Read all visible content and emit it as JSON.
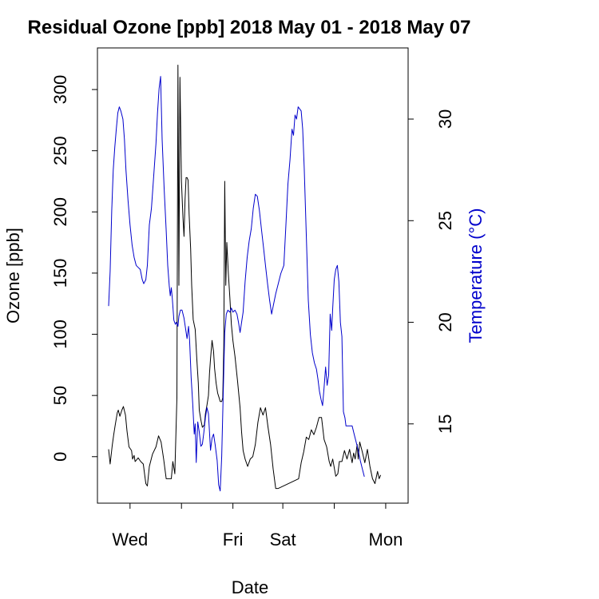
{
  "chart_data": {
    "type": "line",
    "title": "Residual Ozone [ppb] 2018 May 01 - 2018 May 07",
    "xlabel": "Date",
    "ylabel": "Ozone [ppb]",
    "y2label": "Temperature (°C)",
    "x_axis": {
      "unit": "days since start of record",
      "range": [
        0,
        6.1
      ],
      "ticks": [
        {
          "x": 0.64,
          "label": "Wed"
        },
        {
          "x": 1.65,
          "label": ""
        },
        {
          "x": 2.66,
          "label": "Fri"
        },
        {
          "x": 3.64,
          "label": "Sat"
        },
        {
          "x": 4.65,
          "label": ""
        },
        {
          "x": 5.66,
          "label": "Mon"
        }
      ]
    },
    "y_axis": {
      "range": [
        -38,
        334
      ],
      "ticks": [
        {
          "v": 0,
          "label": "0"
        },
        {
          "v": 50,
          "label": "50"
        },
        {
          "v": 100,
          "label": "100"
        },
        {
          "v": 150,
          "label": "150"
        },
        {
          "v": 200,
          "label": "200"
        },
        {
          "v": 250,
          "label": "250"
        },
        {
          "v": 300,
          "label": "300"
        }
      ]
    },
    "y2_axis": {
      "range": [
        11.1,
        33.5
      ],
      "ticks": [
        {
          "v": 15,
          "label": "15"
        },
        {
          "v": 20,
          "label": "20"
        },
        {
          "v": 25,
          "label": "25"
        },
        {
          "v": 30,
          "label": "30"
        }
      ]
    },
    "grid": false,
    "legend": "none",
    "series": [
      {
        "name": "Ozone",
        "axis": "left",
        "color": "#000000",
        "points": [
          [
            0.22,
            6
          ],
          [
            0.25,
            -6
          ],
          [
            0.29,
            9
          ],
          [
            0.32,
            18
          ],
          [
            0.35,
            26
          ],
          [
            0.39,
            36
          ],
          [
            0.41,
            38
          ],
          [
            0.44,
            33
          ],
          [
            0.48,
            38
          ],
          [
            0.51,
            41
          ],
          [
            0.55,
            34
          ],
          [
            0.58,
            21
          ],
          [
            0.62,
            8
          ],
          [
            0.67,
            5
          ],
          [
            0.69,
            -2
          ],
          [
            0.72,
            1
          ],
          [
            0.74,
            -4
          ],
          [
            0.8,
            -1
          ],
          [
            0.85,
            -4
          ],
          [
            0.9,
            -6
          ],
          [
            0.95,
            -22
          ],
          [
            0.98,
            -24
          ],
          [
            1.02,
            -8
          ],
          [
            1.08,
            2
          ],
          [
            1.15,
            8
          ],
          [
            1.2,
            17
          ],
          [
            1.25,
            12
          ],
          [
            1.3,
            -2
          ],
          [
            1.35,
            -18
          ],
          [
            1.4,
            -18
          ],
          [
            1.45,
            -18
          ],
          [
            1.48,
            -4
          ],
          [
            1.52,
            -14
          ],
          [
            1.56,
            48
          ],
          [
            1.58,
            320
          ],
          [
            1.6,
            140
          ],
          [
            1.62,
            310
          ],
          [
            1.65,
            225
          ],
          [
            1.68,
            195
          ],
          [
            1.7,
            180
          ],
          [
            1.72,
            210
          ],
          [
            1.74,
            228
          ],
          [
            1.76,
            228
          ],
          [
            1.78,
            226
          ],
          [
            1.8,
            198
          ],
          [
            1.83,
            170
          ],
          [
            1.85,
            140
          ],
          [
            1.88,
            112
          ],
          [
            1.92,
            104
          ],
          [
            1.95,
            80
          ],
          [
            1.98,
            60
          ],
          [
            2.0,
            38
          ],
          [
            2.03,
            30
          ],
          [
            2.06,
            24
          ],
          [
            2.1,
            26
          ],
          [
            2.12,
            35
          ],
          [
            2.15,
            42
          ],
          [
            2.18,
            50
          ],
          [
            2.2,
            68
          ],
          [
            2.22,
            80
          ],
          [
            2.25,
            95
          ],
          [
            2.28,
            86
          ],
          [
            2.3,
            72
          ],
          [
            2.33,
            60
          ],
          [
            2.36,
            52
          ],
          [
            2.39,
            48
          ],
          [
            2.41,
            45
          ],
          [
            2.44,
            45
          ],
          [
            2.46,
            48
          ],
          [
            2.48,
            90
          ],
          [
            2.5,
            225
          ],
          [
            2.52,
            140
          ],
          [
            2.54,
            175
          ],
          [
            2.57,
            150
          ],
          [
            2.6,
            130
          ],
          [
            2.63,
            108
          ],
          [
            2.66,
            95
          ],
          [
            2.7,
            82
          ],
          [
            2.75,
            62
          ],
          [
            2.8,
            40
          ],
          [
            2.83,
            20
          ],
          [
            2.86,
            5
          ],
          [
            2.9,
            -2
          ],
          [
            2.95,
            -8
          ],
          [
            3.0,
            -2
          ],
          [
            3.05,
            0
          ],
          [
            3.1,
            10
          ],
          [
            3.15,
            28
          ],
          [
            3.2,
            40
          ],
          [
            3.25,
            34
          ],
          [
            3.3,
            40
          ],
          [
            3.35,
            24
          ],
          [
            3.4,
            10
          ],
          [
            3.45,
            -10
          ],
          [
            3.5,
            -26
          ],
          [
            3.55,
            -26
          ],
          [
            3.95,
            -18
          ],
          [
            4.0,
            -5
          ],
          [
            4.05,
            4
          ],
          [
            4.1,
            16
          ],
          [
            4.15,
            14
          ],
          [
            4.2,
            22
          ],
          [
            4.25,
            18
          ],
          [
            4.3,
            24
          ],
          [
            4.35,
            32
          ],
          [
            4.4,
            32
          ],
          [
            4.45,
            14
          ],
          [
            4.5,
            8
          ],
          [
            4.55,
            -4
          ],
          [
            4.58,
            -8
          ],
          [
            4.62,
            -2
          ],
          [
            4.68,
            -16
          ],
          [
            4.72,
            -14
          ],
          [
            4.75,
            -4
          ],
          [
            4.8,
            -4
          ],
          [
            4.85,
            5
          ],
          [
            4.9,
            -2
          ],
          [
            4.95,
            6
          ],
          [
            5.0,
            -5
          ],
          [
            5.03,
            3
          ],
          [
            5.06,
            -2
          ],
          [
            5.1,
            10
          ],
          [
            5.12,
            -2
          ],
          [
            5.15,
            12
          ],
          [
            5.2,
            4
          ],
          [
            5.25,
            -5
          ],
          [
            5.3,
            6
          ],
          [
            5.35,
            -8
          ],
          [
            5.4,
            -18
          ],
          [
            5.45,
            -22
          ],
          [
            5.5,
            -12
          ],
          [
            5.53,
            -18
          ],
          [
            5.56,
            -15
          ]
        ]
      },
      {
        "name": "Temperature",
        "axis": "right",
        "color": "#0000cc",
        "points": [
          [
            0.22,
            20.8
          ],
          [
            0.25,
            22.5
          ],
          [
            0.28,
            25.5
          ],
          [
            0.31,
            27.5
          ],
          [
            0.34,
            28.6
          ],
          [
            0.37,
            29.5
          ],
          [
            0.4,
            30.3
          ],
          [
            0.43,
            30.6
          ],
          [
            0.46,
            30.4
          ],
          [
            0.5,
            30.0
          ],
          [
            0.53,
            29.0
          ],
          [
            0.56,
            27.5
          ],
          [
            0.6,
            26.0
          ],
          [
            0.64,
            24.8
          ],
          [
            0.68,
            23.8
          ],
          [
            0.72,
            23.2
          ],
          [
            0.76,
            22.8
          ],
          [
            0.8,
            22.7
          ],
          [
            0.84,
            22.6
          ],
          [
            0.88,
            22.1
          ],
          [
            0.91,
            21.9
          ],
          [
            0.95,
            22.1
          ],
          [
            0.98,
            22.8
          ],
          [
            1.02,
            24.8
          ],
          [
            1.06,
            25.6
          ],
          [
            1.1,
            27.0
          ],
          [
            1.15,
            28.8
          ],
          [
            1.18,
            30.3
          ],
          [
            1.21,
            31.5
          ],
          [
            1.24,
            32.1
          ],
          [
            1.27,
            29.0
          ],
          [
            1.31,
            26.6
          ],
          [
            1.35,
            24.5
          ],
          [
            1.38,
            22.8
          ],
          [
            1.41,
            21.8
          ],
          [
            1.43,
            21.3
          ],
          [
            1.45,
            21.7
          ],
          [
            1.47,
            21.2
          ],
          [
            1.5,
            20.1
          ],
          [
            1.53,
            19.9
          ],
          [
            1.55,
            20.0
          ],
          [
            1.58,
            19.8
          ],
          [
            1.6,
            20.3
          ],
          [
            1.63,
            20.6
          ],
          [
            1.66,
            20.6
          ],
          [
            1.7,
            20.2
          ],
          [
            1.73,
            19.7
          ],
          [
            1.76,
            19.2
          ],
          [
            1.79,
            19.8
          ],
          [
            1.81,
            19.1
          ],
          [
            1.84,
            17.3
          ],
          [
            1.87,
            16.0
          ],
          [
            1.9,
            14.5
          ],
          [
            1.92,
            15.0
          ],
          [
            1.94,
            13.1
          ],
          [
            1.97,
            15.1
          ],
          [
            2.0,
            14.6
          ],
          [
            2.03,
            13.9
          ],
          [
            2.06,
            14.0
          ],
          [
            2.09,
            14.6
          ],
          [
            2.12,
            15.3
          ],
          [
            2.15,
            15.8
          ],
          [
            2.18,
            15.5
          ],
          [
            2.22,
            13.7
          ],
          [
            2.25,
            14.3
          ],
          [
            2.28,
            14.5
          ],
          [
            2.31,
            14.0
          ],
          [
            2.35,
            13.2
          ],
          [
            2.38,
            12.0
          ],
          [
            2.41,
            11.7
          ],
          [
            2.44,
            13.4
          ],
          [
            2.47,
            16.5
          ],
          [
            2.5,
            19.5
          ],
          [
            2.53,
            20.4
          ],
          [
            2.56,
            20.6
          ],
          [
            2.6,
            20.5
          ],
          [
            2.63,
            20.7
          ],
          [
            2.66,
            20.5
          ],
          [
            2.7,
            20.6
          ],
          [
            2.74,
            20.4
          ],
          [
            2.77,
            20.0
          ],
          [
            2.8,
            19.5
          ],
          [
            2.83,
            20.0
          ],
          [
            2.86,
            20.5
          ],
          [
            2.9,
            22.0
          ],
          [
            2.94,
            23.2
          ],
          [
            2.98,
            24.0
          ],
          [
            3.02,
            24.6
          ],
          [
            3.06,
            25.6
          ],
          [
            3.1,
            26.3
          ],
          [
            3.14,
            26.2
          ],
          [
            3.18,
            25.5
          ],
          [
            3.22,
            24.6
          ],
          [
            3.26,
            23.7
          ],
          [
            3.3,
            22.8
          ],
          [
            3.34,
            21.9
          ],
          [
            3.38,
            21.1
          ],
          [
            3.42,
            20.4
          ],
          [
            3.46,
            20.9
          ],
          [
            3.5,
            21.4
          ],
          [
            3.55,
            21.9
          ],
          [
            3.6,
            22.4
          ],
          [
            3.66,
            22.8
          ],
          [
            3.7,
            24.8
          ],
          [
            3.74,
            26.8
          ],
          [
            3.78,
            28.0
          ],
          [
            3.82,
            29.5
          ],
          [
            3.85,
            29.2
          ],
          [
            3.88,
            30.2
          ],
          [
            3.91,
            30.0
          ],
          [
            3.94,
            30.6
          ],
          [
            3.97,
            30.5
          ],
          [
            4.0,
            30.4
          ],
          [
            4.03,
            29.5
          ],
          [
            4.06,
            27.6
          ],
          [
            4.1,
            24.3
          ],
          [
            4.14,
            21.1
          ],
          [
            4.18,
            19.4
          ],
          [
            4.22,
            18.5
          ],
          [
            4.26,
            18.0
          ],
          [
            4.3,
            17.7
          ],
          [
            4.33,
            17.2
          ],
          [
            4.36,
            16.6
          ],
          [
            4.39,
            16.2
          ],
          [
            4.42,
            15.9
          ],
          [
            4.45,
            16.8
          ],
          [
            4.48,
            17.8
          ],
          [
            4.51,
            16.9
          ],
          [
            4.54,
            17.4
          ],
          [
            4.57,
            20.4
          ],
          [
            4.6,
            19.6
          ],
          [
            4.62,
            20.7
          ],
          [
            4.65,
            22.1
          ],
          [
            4.68,
            22.6
          ],
          [
            4.71,
            22.8
          ],
          [
            4.74,
            22.0
          ],
          [
            4.77,
            20.0
          ],
          [
            4.8,
            19.3
          ],
          [
            4.83,
            15.6
          ],
          [
            4.86,
            15.3
          ],
          [
            4.88,
            14.9
          ],
          [
            4.92,
            14.9
          ],
          [
            4.96,
            14.9
          ],
          [
            5.0,
            14.9
          ],
          [
            5.04,
            14.5
          ],
          [
            5.08,
            14.1
          ],
          [
            5.12,
            13.7
          ],
          [
            5.16,
            13.2
          ],
          [
            5.2,
            12.8
          ],
          [
            5.24,
            12.4
          ]
        ]
      }
    ]
  }
}
